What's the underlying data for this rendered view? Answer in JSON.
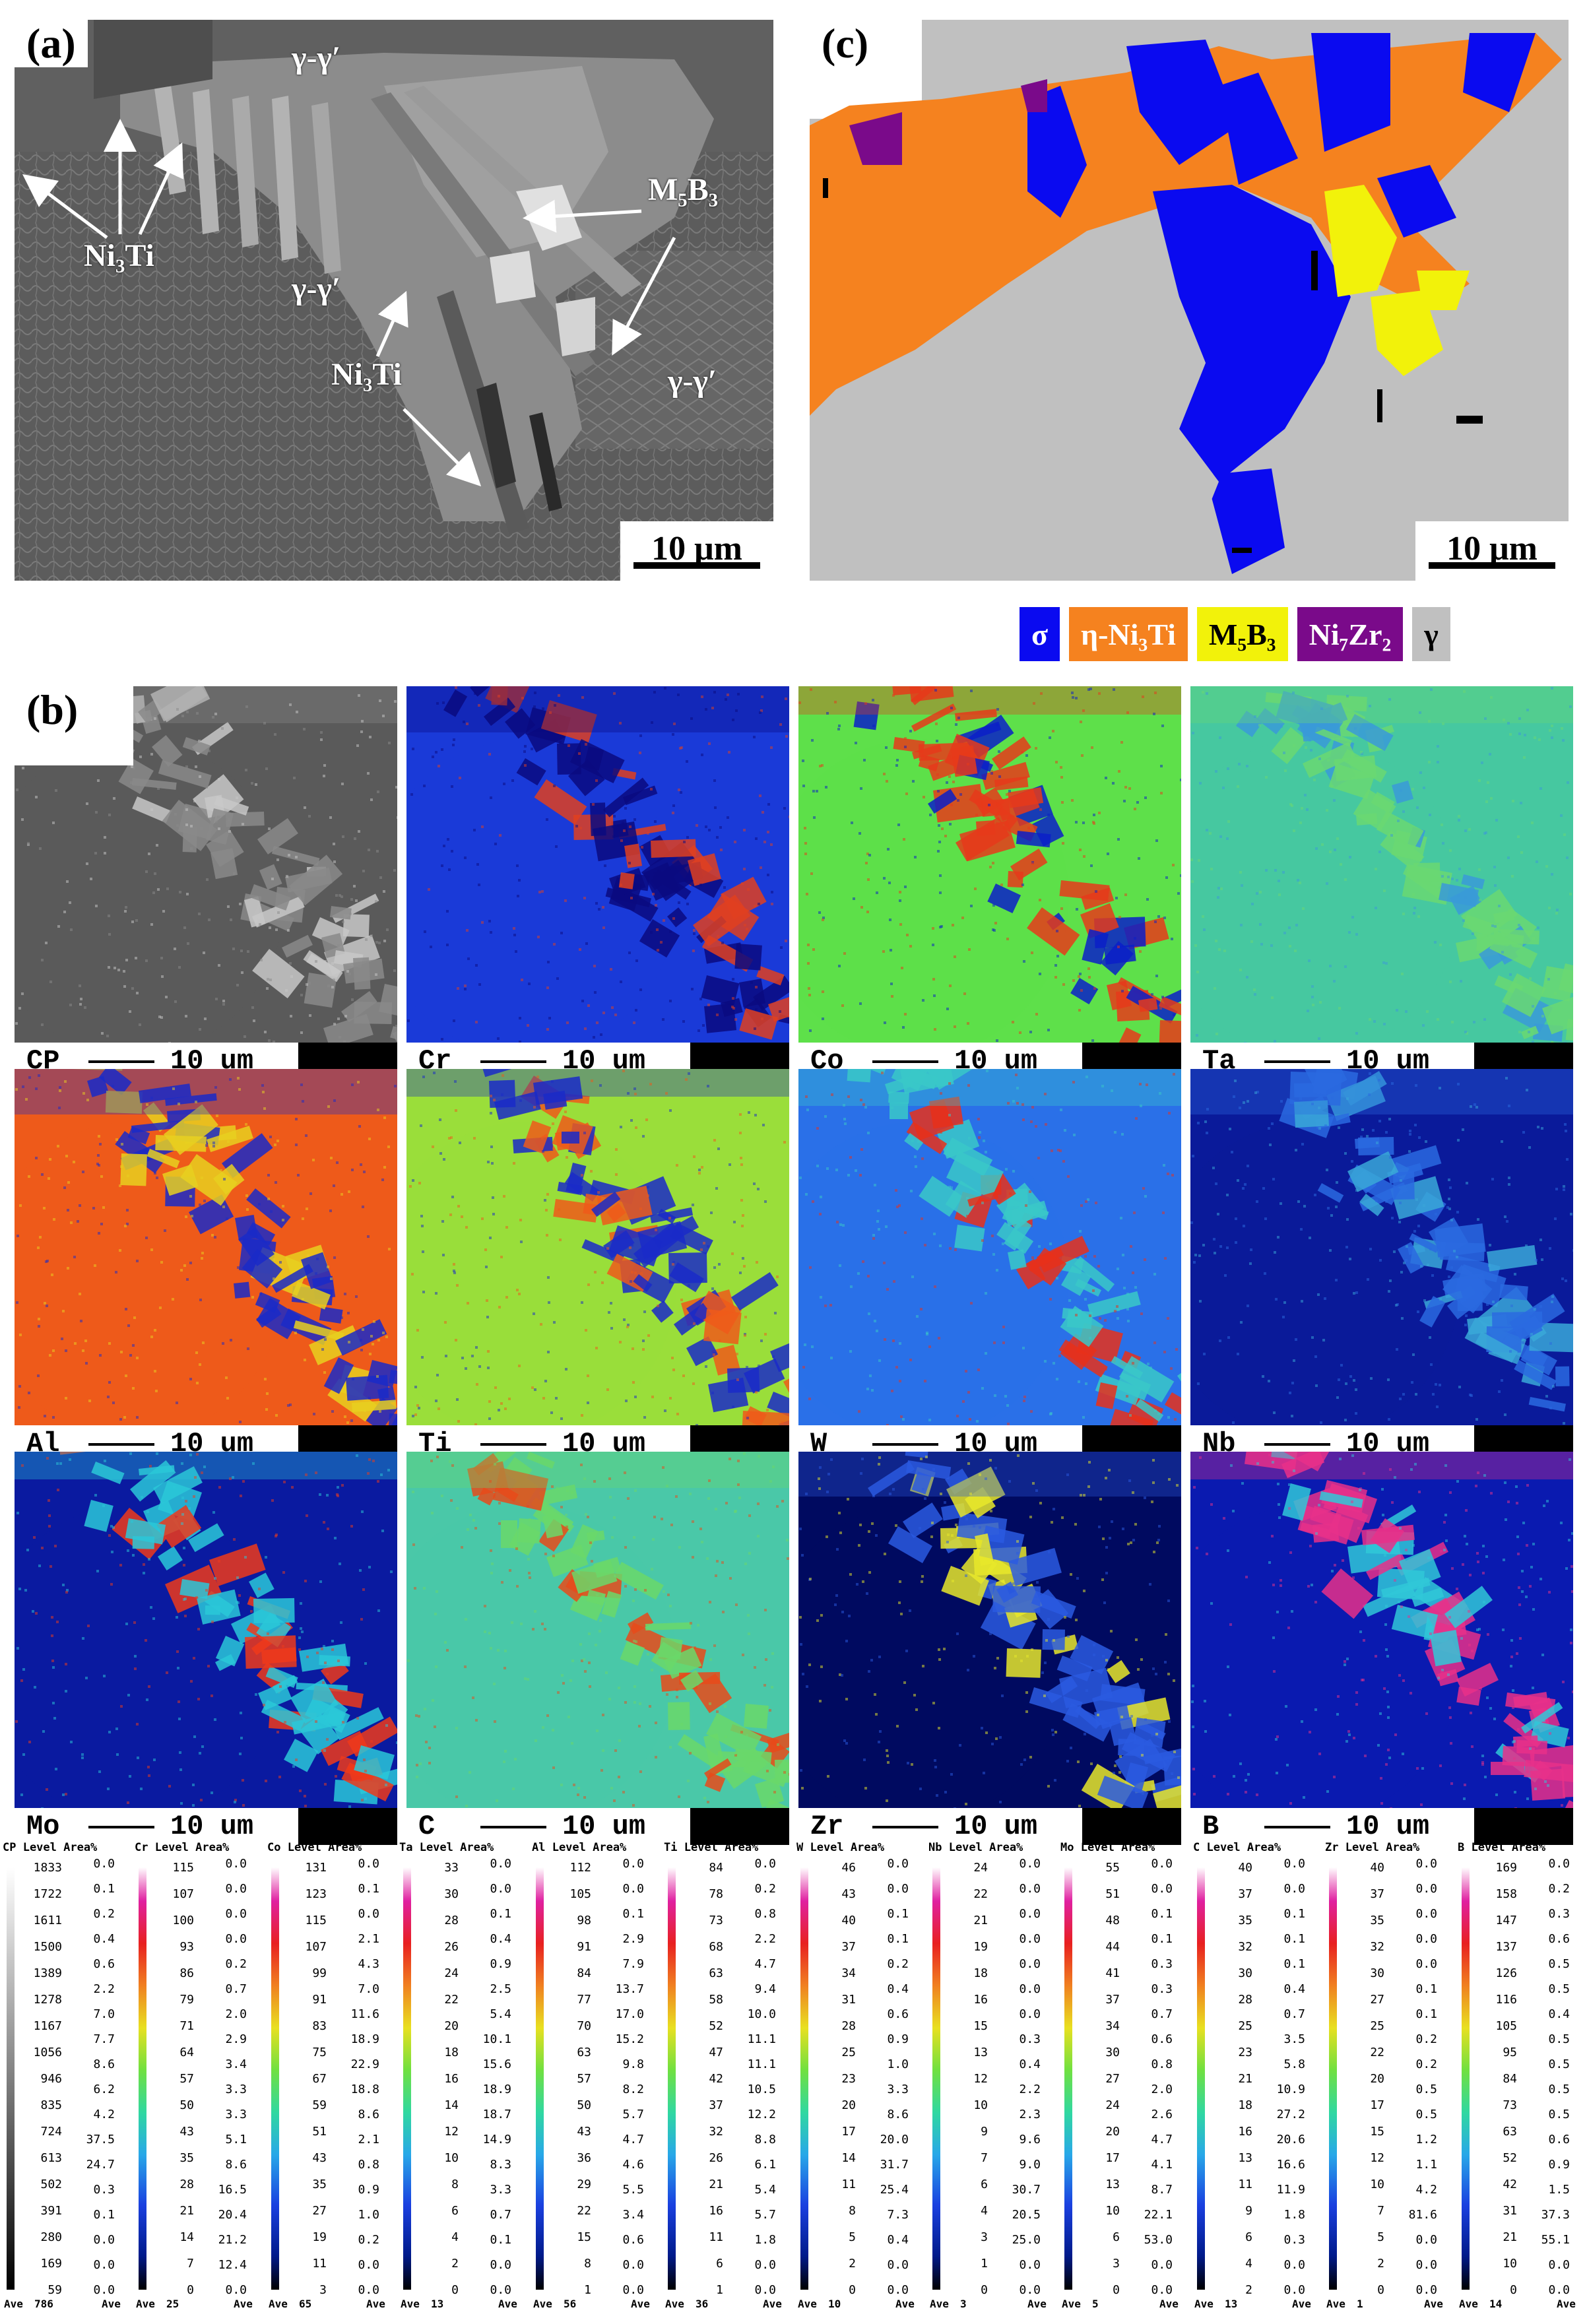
{
  "panel_a": {
    "letter": "(a)",
    "labels": {
      "gg1": "γ-γ′",
      "gg2": "γ-γ′",
      "gg3": "γ-γ′",
      "ni3ti_1": "Ni₃Ti",
      "ni3ti_2": "Ni₃Ti",
      "m5b3": "M₅B₃"
    },
    "scale": "10 μm"
  },
  "panel_c": {
    "letter": "(c)",
    "scale": "10 μm",
    "colors": {
      "sigma": "#0a0af0",
      "eta": "#f5821f",
      "m5b3": "#f2f20a",
      "ni7zr2": "#7a0a8a",
      "gamma": "#c0c0c0"
    }
  },
  "legend": [
    {
      "label": "σ",
      "color": "#0a0af0",
      "text_color": "#ffffff"
    },
    {
      "label": "η-Ni₃Ti",
      "color": "#f5821f",
      "text_color": "#ffffff"
    },
    {
      "label": "M₅B₃",
      "color": "#f2f20a",
      "text_color": "#000000"
    },
    {
      "label": "Ni₇Zr₂",
      "color": "#7a0a8a",
      "text_color": "#ffffff"
    },
    {
      "label": "γ",
      "color": "#c0c0c0",
      "text_color": "#000000"
    }
  ],
  "panel_b": {
    "letter": "(b)",
    "distance": "10 um",
    "maps": [
      {
        "el": "CP",
        "kind": "bse"
      },
      {
        "el": "Cr",
        "kind": "hi-phase"
      },
      {
        "el": "Co",
        "kind": "co"
      },
      {
        "el": "Ta",
        "kind": "flat"
      },
      {
        "el": "Al",
        "kind": "hi-matrix"
      },
      {
        "el": "Ti",
        "kind": "hi-matrix2"
      },
      {
        "el": "W",
        "kind": "low-phase"
      },
      {
        "el": "Nb",
        "kind": "faint"
      },
      {
        "el": "Mo",
        "kind": "mo"
      },
      {
        "el": "C",
        "kind": "carbon"
      },
      {
        "el": "Zr",
        "kind": "zr"
      },
      {
        "el": "B",
        "kind": "boron"
      }
    ]
  },
  "scales": [
    {
      "el": "CP",
      "header": "CP Level  Area%",
      "levels": [
        "1833",
        "1722",
        "1611",
        "1500",
        "1389",
        "1278",
        "1167",
        "1056",
        "946",
        "835",
        "724",
        "613",
        "502",
        "391",
        "280",
        "169",
        "59"
      ],
      "areas": [
        "0.0",
        "0.1",
        "0.2",
        "0.4",
        "0.6",
        "2.2",
        "7.0",
        "7.7",
        "8.6",
        "6.2",
        "4.2",
        "37.5",
        "24.7",
        "0.3",
        "0.1",
        "0.0",
        "0.0",
        "0.0"
      ],
      "ave": "786",
      "gray": true
    },
    {
      "el": "Cr",
      "header": "Cr Level  Area%",
      "levels": [
        "115",
        "107",
        "100",
        "93",
        "86",
        "79",
        "71",
        "64",
        "57",
        "50",
        "43",
        "35",
        "28",
        "21",
        "14",
        "7",
        "0"
      ],
      "areas": [
        "0.0",
        "0.0",
        "0.0",
        "0.0",
        "0.2",
        "0.7",
        "2.0",
        "2.9",
        "3.4",
        "3.3",
        "3.3",
        "5.1",
        "8.6",
        "16.5",
        "20.4",
        "21.2",
        "12.4",
        "0.0"
      ],
      "ave": "25"
    },
    {
      "el": "Co",
      "header": "Co Level  Area%",
      "levels": [
        "131",
        "123",
        "115",
        "107",
        "99",
        "91",
        "83",
        "75",
        "67",
        "59",
        "51",
        "43",
        "35",
        "27",
        "19",
        "11",
        "3"
      ],
      "areas": [
        "0.0",
        "0.1",
        "0.0",
        "2.1",
        "4.3",
        "7.0",
        "11.6",
        "18.9",
        "22.9",
        "18.8",
        "8.6",
        "2.1",
        "0.8",
        "0.9",
        "1.0",
        "0.2",
        "0.0",
        "0.0"
      ],
      "ave": "65"
    },
    {
      "el": "Ta",
      "header": "Ta Level  Area%",
      "levels": [
        "33",
        "30",
        "28",
        "26",
        "24",
        "22",
        "20",
        "18",
        "16",
        "14",
        "12",
        "10",
        "8",
        "6",
        "4",
        "2",
        "0"
      ],
      "areas": [
        "0.0",
        "0.0",
        "0.1",
        "0.4",
        "0.9",
        "2.5",
        "5.4",
        "10.1",
        "15.6",
        "18.9",
        "18.7",
        "14.9",
        "8.3",
        "3.3",
        "0.7",
        "0.1",
        "0.0",
        "0.0"
      ],
      "ave": "13"
    },
    {
      "el": "Al",
      "header": "Al Level  Area%",
      "levels": [
        "112",
        "105",
        "98",
        "91",
        "84",
        "77",
        "70",
        "63",
        "57",
        "50",
        "43",
        "36",
        "29",
        "22",
        "15",
        "8",
        "1"
      ],
      "areas": [
        "0.0",
        "0.0",
        "0.1",
        "2.9",
        "7.9",
        "13.7",
        "17.0",
        "15.2",
        "9.8",
        "8.2",
        "5.7",
        "4.7",
        "4.6",
        "5.5",
        "3.4",
        "0.6",
        "0.0",
        "0.0"
      ],
      "ave": "56"
    },
    {
      "el": "Ti",
      "header": "Ti Level  Area%",
      "levels": [
        "84",
        "78",
        "73",
        "68",
        "63",
        "58",
        "52",
        "47",
        "42",
        "37",
        "32",
        "26",
        "21",
        "16",
        "11",
        "6",
        "1"
      ],
      "areas": [
        "0.0",
        "0.2",
        "0.8",
        "2.2",
        "4.7",
        "9.4",
        "10.0",
        "11.1",
        "11.1",
        "10.5",
        "12.2",
        "8.8",
        "6.1",
        "5.4",
        "5.7",
        "1.8",
        "0.0",
        "0.0"
      ],
      "ave": "36"
    },
    {
      "el": "W",
      "header": "W  Level  Area%",
      "levels": [
        "46",
        "43",
        "40",
        "37",
        "34",
        "31",
        "28",
        "25",
        "23",
        "20",
        "17",
        "14",
        "11",
        "8",
        "5",
        "2",
        "0"
      ],
      "areas": [
        "0.0",
        "0.0",
        "0.1",
        "0.1",
        "0.2",
        "0.4",
        "0.6",
        "0.9",
        "1.0",
        "3.3",
        "8.6",
        "20.0",
        "31.7",
        "25.4",
        "7.3",
        "0.4",
        "0.0",
        "0.0"
      ],
      "ave": "10"
    },
    {
      "el": "Nb",
      "header": "Nb Level  Area%",
      "levels": [
        "24",
        "22",
        "21",
        "19",
        "18",
        "16",
        "15",
        "13",
        "12",
        "10",
        "9",
        "7",
        "6",
        "4",
        "3",
        "1",
        "0"
      ],
      "areas": [
        "0.0",
        "0.0",
        "0.0",
        "0.0",
        "0.0",
        "0.0",
        "0.0",
        "0.3",
        "0.4",
        "2.2",
        "2.3",
        "9.6",
        "9.0",
        "30.7",
        "20.5",
        "25.0",
        "0.0",
        "0.0"
      ],
      "ave": "3"
    },
    {
      "el": "Mo",
      "header": "Mo Level  Area%",
      "levels": [
        "55",
        "51",
        "48",
        "44",
        "41",
        "37",
        "34",
        "30",
        "27",
        "24",
        "20",
        "17",
        "13",
        "10",
        "6",
        "3",
        "0"
      ],
      "areas": [
        "0.0",
        "0.0",
        "0.1",
        "0.1",
        "0.3",
        "0.3",
        "0.7",
        "0.6",
        "0.8",
        "2.0",
        "2.6",
        "4.7",
        "4.1",
        "8.7",
        "22.1",
        "53.0",
        "0.0",
        "0.0"
      ],
      "ave": "5"
    },
    {
      "el": "C",
      "header": "C  Level  Area%",
      "levels": [
        "40",
        "37",
        "35",
        "32",
        "30",
        "28",
        "25",
        "23",
        "21",
        "18",
        "16",
        "13",
        "11",
        "9",
        "6",
        "4",
        "2"
      ],
      "areas": [
        "0.0",
        "0.0",
        "0.1",
        "0.1",
        "0.1",
        "0.4",
        "0.7",
        "3.5",
        "5.8",
        "10.9",
        "27.2",
        "20.6",
        "16.6",
        "11.9",
        "1.8",
        "0.3",
        "0.0",
        "0.0"
      ],
      "ave": "13"
    },
    {
      "el": "Zr",
      "header": "Zr Level  Area%",
      "levels": [
        "40",
        "37",
        "35",
        "32",
        "30",
        "27",
        "25",
        "22",
        "20",
        "17",
        "15",
        "12",
        "10",
        "7",
        "5",
        "2",
        "0"
      ],
      "areas": [
        "0.0",
        "0.0",
        "0.0",
        "0.0",
        "0.0",
        "0.1",
        "0.1",
        "0.2",
        "0.2",
        "0.5",
        "0.5",
        "1.2",
        "1.1",
        "4.2",
        "81.6",
        "0.0",
        "0.0",
        "0.0"
      ],
      "ave": "1"
    },
    {
      "el": "B",
      "header": "B  Level  Area%",
      "levels": [
        "169",
        "158",
        "147",
        "137",
        "126",
        "116",
        "105",
        "95",
        "84",
        "73",
        "63",
        "52",
        "42",
        "31",
        "21",
        "10",
        "0"
      ],
      "areas": [
        "0.0",
        "0.2",
        "0.3",
        "0.6",
        "0.5",
        "0.5",
        "0.4",
        "0.5",
        "0.5",
        "0.5",
        "0.5",
        "0.6",
        "0.9",
        "1.5",
        "37.3",
        "55.1",
        "0.0",
        "0.0"
      ],
      "ave": "14"
    }
  ],
  "scale_ave_label": "Ave"
}
